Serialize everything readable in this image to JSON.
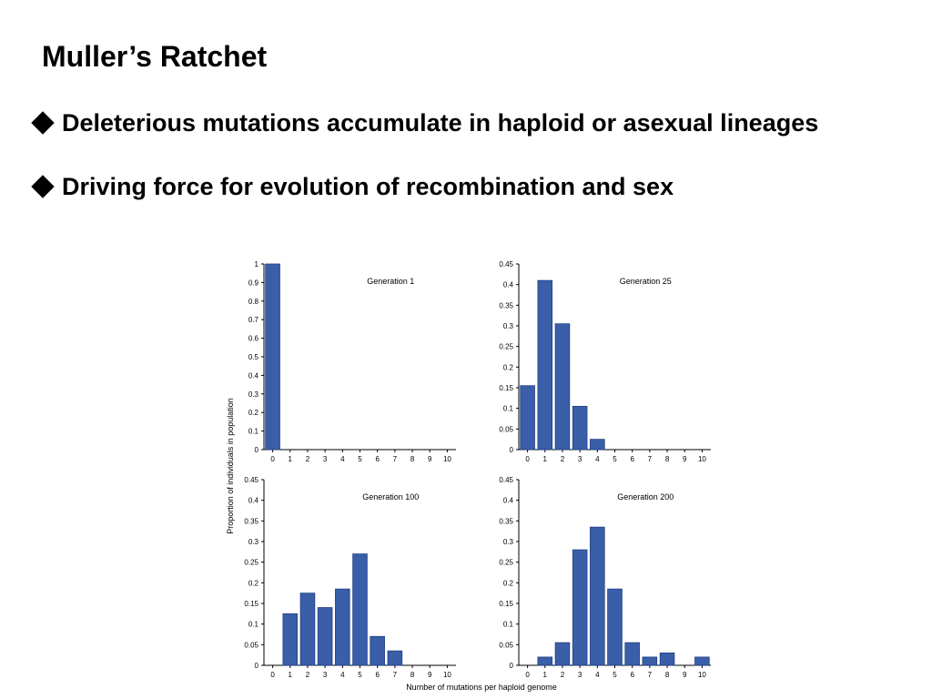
{
  "slide": {
    "title": "Muller’s Ratchet",
    "bullets": [
      "Deleterious mutations accumulate in haploid or asexual lineages",
      "Driving force for evolution of recombination and sex"
    ]
  },
  "figure": {
    "ylabel": "Proportion of individuals in population",
    "xlabel": "Number of mutations per haploid genome",
    "bar_color": "#3a5ea8"
  },
  "chart_data": [
    {
      "type": "bar",
      "title": "Generation 1",
      "categories": [
        "0",
        "1",
        "2",
        "3",
        "4",
        "5",
        "6",
        "7",
        "8",
        "9",
        "10"
      ],
      "values": [
        1,
        0,
        0,
        0,
        0,
        0,
        0,
        0,
        0,
        0,
        0
      ],
      "ylim": [
        0,
        1
      ],
      "yticks": [
        "0",
        "0.1",
        "0.2",
        "0.3",
        "0.4",
        "0.5",
        "0.6",
        "0.7",
        "0.8",
        "0.9",
        "1"
      ]
    },
    {
      "type": "bar",
      "title": "Generation 25",
      "categories": [
        "0",
        "1",
        "2",
        "3",
        "4",
        "5",
        "6",
        "7",
        "8",
        "9",
        "10"
      ],
      "values": [
        0.155,
        0.41,
        0.305,
        0.105,
        0.025,
        0,
        0,
        0,
        0,
        0,
        0
      ],
      "ylim": [
        0,
        0.45
      ],
      "yticks": [
        "0",
        "0.05",
        "0.1",
        "0.15",
        "0.2",
        "0.25",
        "0.3",
        "0.35",
        "0.4",
        "0.45"
      ]
    },
    {
      "type": "bar",
      "title": "Generation 100",
      "categories": [
        "0",
        "1",
        "2",
        "3",
        "4",
        "5",
        "6",
        "7",
        "8",
        "9",
        "10"
      ],
      "values": [
        0,
        0.125,
        0.175,
        0.14,
        0.185,
        0.27,
        0.07,
        0.035,
        0,
        0,
        0
      ],
      "ylim": [
        0,
        0.45
      ],
      "yticks": [
        "0",
        "0.05",
        "0.1",
        "0.15",
        "0.2",
        "0.25",
        "0.3",
        "0.35",
        "0.4",
        "0.45"
      ]
    },
    {
      "type": "bar",
      "title": "Generation 200",
      "categories": [
        "0",
        "1",
        "2",
        "3",
        "4",
        "5",
        "6",
        "7",
        "8",
        "9",
        "10"
      ],
      "values": [
        0,
        0.02,
        0.055,
        0.28,
        0.335,
        0.185,
        0.055,
        0.02,
        0.03,
        0,
        0.02
      ],
      "ylim": [
        0,
        0.45
      ],
      "yticks": [
        "0",
        "0.05",
        "0.1",
        "0.15",
        "0.2",
        "0.25",
        "0.3",
        "0.35",
        "0.4",
        "0.45"
      ]
    }
  ]
}
